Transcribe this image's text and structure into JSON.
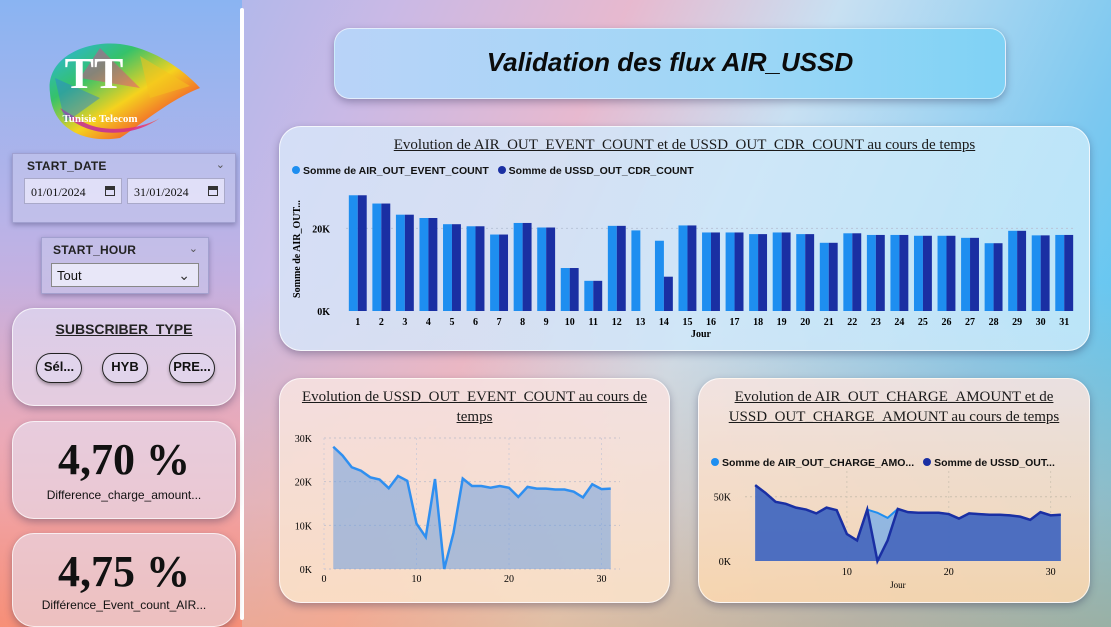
{
  "header": {
    "title": "Validation des flux AIR_USSD"
  },
  "logo": {
    "brand": "Tunisie Telecom",
    "mark": "TT"
  },
  "filters": {
    "start_date": {
      "label": "START_DATE",
      "from": "01/01/2024",
      "to": "31/01/2024"
    },
    "start_hour": {
      "label": "START_HOUR",
      "value": "Tout"
    },
    "subscriber_type": {
      "label": "SUBSCRIBER_TYPE",
      "options": [
        "Sél...",
        "HYB",
        "PRE..."
      ]
    }
  },
  "kpis": [
    {
      "value": "4,70 %",
      "label": "Difference_charge_amount..."
    },
    {
      "value": "4,75 %",
      "label": "Différence_Event_count_AIR..."
    }
  ],
  "colors": {
    "air": "#1e8ef0",
    "ussd": "#1a2fa3",
    "area_line": "#2f8ff0",
    "charge_fill": "#3c5cb8"
  },
  "chart_data": [
    {
      "type": "bar",
      "title": "Evolution de AIR_OUT_EVENT_COUNT et de USSD_OUT_CDR_COUNT au cours de temps",
      "xlabel": "Jour",
      "ylabel": "Somme de AIR_OUT...",
      "yticks": [
        "0K",
        "20K"
      ],
      "ylim": [
        0,
        30000
      ],
      "categories": [
        "1",
        "2",
        "3",
        "4",
        "5",
        "6",
        "7",
        "8",
        "9",
        "10",
        "11",
        "12",
        "13",
        "14",
        "15",
        "16",
        "17",
        "18",
        "19",
        "20",
        "21",
        "22",
        "23",
        "24",
        "25",
        "26",
        "27",
        "28",
        "29",
        "30",
        "31"
      ],
      "series": [
        {
          "name": "Somme de AIR_OUT_EVENT_COUNT",
          "values": [
            28000,
            26000,
            23300,
            22500,
            21000,
            20500,
            18500,
            21300,
            20200,
            10400,
            7300,
            20600,
            19500,
            17000,
            20700,
            19000,
            19000,
            18600,
            19000,
            18600,
            16500,
            18800,
            18400,
            18400,
            18200,
            18200,
            17700,
            16400,
            19400,
            18300,
            18400
          ]
        },
        {
          "name": "Somme de USSD_OUT_CDR_COUNT",
          "values": [
            28000,
            26000,
            23300,
            22500,
            21000,
            20500,
            18500,
            21300,
            20200,
            10400,
            7300,
            20600,
            0,
            8300,
            20700,
            19000,
            19000,
            18600,
            19000,
            18600,
            16500,
            18800,
            18400,
            18400,
            18200,
            18200,
            17700,
            16400,
            19400,
            18300,
            18400
          ]
        }
      ],
      "legend": "top-left"
    },
    {
      "type": "area",
      "title": "Evolution de USSD_OUT_EVENT_COUNT au cours de temps",
      "yticks": [
        "0K",
        "10K",
        "20K",
        "30K"
      ],
      "xticks": [
        "0",
        "10",
        "20",
        "30"
      ],
      "ylim": [
        0,
        30000
      ],
      "xlim": [
        0,
        32
      ],
      "x": [
        1,
        2,
        3,
        4,
        5,
        6,
        7,
        8,
        9,
        10,
        11,
        12,
        13,
        14,
        15,
        16,
        17,
        18,
        19,
        20,
        21,
        22,
        23,
        24,
        25,
        26,
        27,
        28,
        29,
        30,
        31
      ],
      "values": [
        28000,
        26000,
        23300,
        22500,
        21000,
        20500,
        18500,
        21300,
        20200,
        10400,
        7300,
        20600,
        0,
        8300,
        20700,
        19000,
        19000,
        18600,
        19000,
        18600,
        16500,
        18800,
        18400,
        18400,
        18200,
        18200,
        17700,
        16400,
        19400,
        18300,
        18400
      ]
    },
    {
      "type": "area",
      "title": "Evolution de AIR_OUT_CHARGE_AMOUNT et de USSD_OUT_CHARGE_AMOUNT au cours de temps",
      "xlabel": "Jour",
      "yticks": [
        "0K",
        "50K"
      ],
      "xticks": [
        "10",
        "20",
        "30"
      ],
      "ylim": [
        0,
        70000
      ],
      "xlim": [
        0,
        32
      ],
      "x": [
        1,
        2,
        3,
        4,
        5,
        6,
        7,
        8,
        9,
        10,
        11,
        12,
        13,
        14,
        15,
        16,
        17,
        18,
        19,
        20,
        21,
        22,
        23,
        24,
        25,
        26,
        27,
        28,
        29,
        30,
        31
      ],
      "series": [
        {
          "name": "Somme de AIR_OUT_CHARGE_AMO...",
          "values": [
            59000,
            53000,
            46000,
            44500,
            41500,
            40000,
            37000,
            41500,
            39500,
            21000,
            16000,
            40000,
            37500,
            33500,
            40500,
            38000,
            37500,
            37500,
            37500,
            36500,
            33000,
            37000,
            36500,
            36000,
            36000,
            35500,
            34500,
            32000,
            38000,
            35500,
            36000
          ]
        },
        {
          "name": "Somme de USSD_OUT...",
          "values": [
            59000,
            53000,
            46000,
            44500,
            41500,
            40000,
            37000,
            41500,
            39500,
            21000,
            16000,
            40000,
            0,
            16000,
            40500,
            38000,
            37500,
            37500,
            37500,
            36500,
            33000,
            37000,
            36500,
            36000,
            36000,
            35500,
            34500,
            32000,
            38000,
            35500,
            36000
          ]
        }
      ]
    }
  ]
}
